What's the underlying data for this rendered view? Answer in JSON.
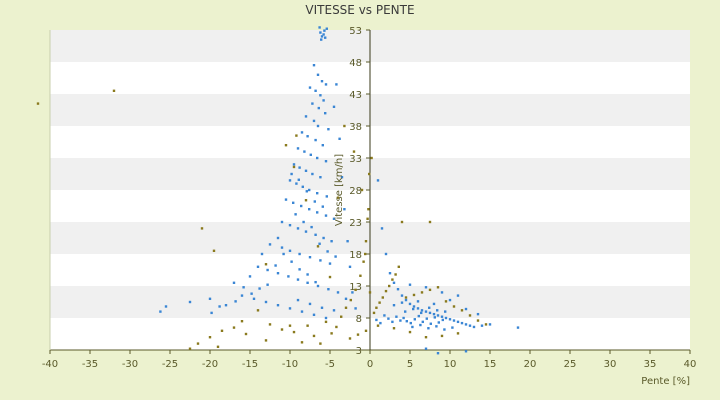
{
  "chart_data": {
    "type": "scatter",
    "title": "VITESSE vs PENTE",
    "xlabel": "Pente [%]",
    "ylabel": "Vitesse [km/h]",
    "xlim": [
      -40,
      40
    ],
    "ylim": [
      3,
      53
    ],
    "x_ticks": [
      "-40",
      "-35",
      "-30",
      "-25",
      "-20",
      "-15",
      "-10",
      "-5",
      "0",
      "5",
      "10",
      "15",
      "20",
      "25",
      "30",
      "35",
      "40"
    ],
    "y_ticks": [
      "3",
      "8",
      "13",
      "18",
      "23",
      "28",
      "33",
      "38",
      "43",
      "48",
      "53"
    ],
    "grid": "horizontal bands",
    "legend": "none",
    "colors": {
      "background": "#ecf2cf",
      "plot_band_light": "#ffffff",
      "plot_band_dark": "#f0f0f0",
      "series_primary": "#3a86d4",
      "series_secondary": "#8a7a1e",
      "axis": "#5a5a2a"
    },
    "series": [
      {
        "marker_color": "#3a86d4",
        "points": [
          [
            -6.2,
            52.6
          ],
          [
            -6.0,
            52.0
          ],
          [
            -5.8,
            52.3
          ],
          [
            -5.6,
            51.8
          ],
          [
            -6.1,
            51.5
          ],
          [
            -5.7,
            52.9
          ],
          [
            -5.4,
            53.2
          ],
          [
            -6.3,
            53.4
          ],
          [
            -7.0,
            47.5
          ],
          [
            -6.5,
            46.0
          ],
          [
            -6.0,
            45.0
          ],
          [
            -5.5,
            44.5
          ],
          [
            -7.5,
            44.0
          ],
          [
            -6.8,
            43.5
          ],
          [
            -6.2,
            42.8
          ],
          [
            -5.8,
            42.0
          ],
          [
            -7.2,
            41.5
          ],
          [
            -6.4,
            40.8
          ],
          [
            -5.6,
            40.0
          ],
          [
            -8.0,
            39.5
          ],
          [
            -7.0,
            38.8
          ],
          [
            -6.5,
            38.0
          ],
          [
            -5.2,
            37.5
          ],
          [
            -8.5,
            37.0
          ],
          [
            -7.8,
            36.4
          ],
          [
            -6.8,
            35.8
          ],
          [
            -5.9,
            35.0
          ],
          [
            -9.0,
            34.5
          ],
          [
            -8.2,
            34.0
          ],
          [
            -7.4,
            33.5
          ],
          [
            -6.6,
            33.0
          ],
          [
            -5.5,
            32.5
          ],
          [
            -9.5,
            32.0
          ],
          [
            -8.8,
            31.5
          ],
          [
            -8.0,
            31.0
          ],
          [
            -7.2,
            30.5
          ],
          [
            -6.2,
            30.0
          ],
          [
            -10.0,
            29.5
          ],
          [
            -9.2,
            29.0
          ],
          [
            -8.4,
            28.5
          ],
          [
            -7.6,
            28.0
          ],
          [
            -6.6,
            27.5
          ],
          [
            -5.4,
            27.0
          ],
          [
            -10.5,
            26.5
          ],
          [
            -9.6,
            26.0
          ],
          [
            -8.6,
            25.5
          ],
          [
            -7.6,
            25.0
          ],
          [
            -6.6,
            24.5
          ],
          [
            -5.5,
            24.0
          ],
          [
            -4.5,
            23.5
          ],
          [
            -11.0,
            23.0
          ],
          [
            -10.0,
            22.5
          ],
          [
            -9.0,
            22.0
          ],
          [
            -8.0,
            21.5
          ],
          [
            -6.8,
            21.0
          ],
          [
            -5.8,
            20.5
          ],
          [
            -4.8,
            20.0
          ],
          [
            -12.5,
            19.5
          ],
          [
            -11.0,
            19.0
          ],
          [
            -10.0,
            18.5
          ],
          [
            -8.8,
            18.0
          ],
          [
            -7.5,
            17.5
          ],
          [
            -6.2,
            17.0
          ],
          [
            -5.0,
            16.5
          ],
          [
            -14.0,
            16.0
          ],
          [
            -12.8,
            15.5
          ],
          [
            -11.5,
            15.0
          ],
          [
            -10.2,
            14.5
          ],
          [
            -9.0,
            14.0
          ],
          [
            -7.8,
            13.5
          ],
          [
            -6.5,
            13.0
          ],
          [
            -5.2,
            12.5
          ],
          [
            -4.0,
            12.0
          ],
          [
            -16.0,
            11.5
          ],
          [
            -14.5,
            11.0
          ],
          [
            -13.0,
            10.5
          ],
          [
            -11.5,
            10.0
          ],
          [
            -10.0,
            9.5
          ],
          [
            -8.5,
            9.0
          ],
          [
            -7.0,
            8.5
          ],
          [
            -5.5,
            8.0
          ],
          [
            -18.0,
            10.0
          ],
          [
            -20.0,
            11.0
          ],
          [
            -22.5,
            10.5
          ],
          [
            -25.5,
            9.8
          ],
          [
            -26.2,
            9.0
          ],
          [
            -17.0,
            13.5
          ],
          [
            -15.0,
            14.5
          ],
          [
            -13.5,
            18.0
          ],
          [
            -11.5,
            20.5
          ],
          [
            -4.2,
            44.5
          ],
          [
            -4.5,
            41.0
          ],
          [
            -3.8,
            36.0
          ],
          [
            -3.5,
            30.0
          ],
          [
            -3.2,
            25.0
          ],
          [
            -2.8,
            20.0
          ],
          [
            -2.5,
            16.0
          ],
          [
            -2.2,
            12.0
          ],
          [
            -1.8,
            9.5
          ],
          [
            1.0,
            29.5
          ],
          [
            1.5,
            22.0
          ],
          [
            2.0,
            18.0
          ],
          [
            2.5,
            15.0
          ],
          [
            3.0,
            13.5
          ],
          [
            3.5,
            12.5
          ],
          [
            4.0,
            11.5
          ],
          [
            4.5,
            10.8
          ],
          [
            5.0,
            10.2
          ],
          [
            5.5,
            9.8
          ],
          [
            6.0,
            9.5
          ],
          [
            6.5,
            9.2
          ],
          [
            7.0,
            9.0
          ],
          [
            7.5,
            8.8
          ],
          [
            8.0,
            8.6
          ],
          [
            8.5,
            8.4
          ],
          [
            9.0,
            8.2
          ],
          [
            9.5,
            8.0
          ],
          [
            10.0,
            7.8
          ],
          [
            10.5,
            7.6
          ],
          [
            11.0,
            7.4
          ],
          [
            11.5,
            7.2
          ],
          [
            12.0,
            7.0
          ],
          [
            12.5,
            6.8
          ],
          [
            13.0,
            6.6
          ],
          [
            14.0,
            6.8
          ],
          [
            15.0,
            7.0
          ],
          [
            18.5,
            6.5
          ],
          [
            4.2,
            8.0
          ],
          [
            4.6,
            7.5
          ],
          [
            5.1,
            7.2
          ],
          [
            5.6,
            7.8
          ],
          [
            6.1,
            8.3
          ],
          [
            6.6,
            7.4
          ],
          [
            7.1,
            7.9
          ],
          [
            7.6,
            7.1
          ],
          [
            8.1,
            8.1
          ],
          [
            8.6,
            7.3
          ],
          [
            9.1,
            7.7
          ],
          [
            3.8,
            7.6
          ],
          [
            3.3,
            8.2
          ],
          [
            2.8,
            7.4
          ],
          [
            2.3,
            7.9
          ],
          [
            1.8,
            8.4
          ],
          [
            1.3,
            7.2
          ],
          [
            0.8,
            7.7
          ],
          [
            5.3,
            6.6
          ],
          [
            6.3,
            6.9
          ],
          [
            7.3,
            6.4
          ],
          [
            8.3,
            6.7
          ],
          [
            9.3,
            6.2
          ],
          [
            10.3,
            6.5
          ],
          [
            4.4,
            9.0
          ],
          [
            5.4,
            9.4
          ],
          [
            6.4,
            8.8
          ],
          [
            7.4,
            9.6
          ],
          [
            8.4,
            9.2
          ],
          [
            9.4,
            9.0
          ],
          [
            3.0,
            10.0
          ],
          [
            4.0,
            10.4
          ],
          [
            6.0,
            10.6
          ],
          [
            8.0,
            10.2
          ],
          [
            10.0,
            10.8
          ],
          [
            12.0,
            9.4
          ],
          [
            9.0,
            12.0
          ],
          [
            7.0,
            12.8
          ],
          [
            5.0,
            13.2
          ],
          [
            11.0,
            11.5
          ],
          [
            13.5,
            8.6
          ],
          [
            -9.8,
            30.5
          ],
          [
            -8.9,
            29.6
          ],
          [
            -7.9,
            27.8
          ],
          [
            -6.9,
            26.2
          ],
          [
            -5.9,
            25.4
          ],
          [
            -9.3,
            24.2
          ],
          [
            -8.3,
            23.0
          ],
          [
            -7.3,
            22.2
          ],
          [
            -6.3,
            19.6
          ],
          [
            -5.3,
            18.4
          ],
          [
            -4.3,
            17.6
          ],
          [
            -10.8,
            18.0
          ],
          [
            -9.8,
            16.8
          ],
          [
            -8.8,
            15.6
          ],
          [
            -7.8,
            14.8
          ],
          [
            -6.8,
            13.6
          ],
          [
            -9.0,
            10.8
          ],
          [
            -7.5,
            10.2
          ],
          [
            -6.0,
            9.6
          ],
          [
            -4.5,
            9.2
          ],
          [
            -3.0,
            11.0
          ],
          [
            -11.8,
            16.2
          ],
          [
            -12.8,
            13.2
          ],
          [
            -13.8,
            12.6
          ],
          [
            -14.8,
            11.8
          ],
          [
            -15.8,
            12.8
          ],
          [
            -16.8,
            10.6
          ],
          [
            -18.8,
            9.8
          ],
          [
            -19.8,
            8.8
          ],
          [
            8.5,
            2.5
          ],
          [
            7.0,
            3.2
          ],
          [
            12.0,
            2.8
          ]
        ]
      },
      {
        "marker_color": "#8a7a1e",
        "points": [
          [
            -41.5,
            41.5
          ],
          [
            -32.0,
            43.5
          ],
          [
            -21.0,
            22.0
          ],
          [
            -19.5,
            18.5
          ],
          [
            -18.5,
            6.0
          ],
          [
            -19.0,
            3.5
          ],
          [
            -20.0,
            5.0
          ],
          [
            -21.5,
            4.0
          ],
          [
            -22.5,
            3.2
          ],
          [
            -17.0,
            6.5
          ],
          [
            -16.0,
            7.5
          ],
          [
            -15.5,
            5.5
          ],
          [
            -13.0,
            4.5
          ],
          [
            -12.5,
            7.0
          ],
          [
            -11.0,
            6.2
          ],
          [
            -9.5,
            5.8
          ],
          [
            -8.5,
            4.2
          ],
          [
            -7.8,
            6.8
          ],
          [
            -7.0,
            5.2
          ],
          [
            -6.2,
            4.0
          ],
          [
            -5.5,
            7.4
          ],
          [
            -4.8,
            5.6
          ],
          [
            -4.2,
            6.6
          ],
          [
            -3.6,
            8.2
          ],
          [
            -3.0,
            9.6
          ],
          [
            -2.4,
            10.8
          ],
          [
            -1.8,
            12.4
          ],
          [
            -1.2,
            14.6
          ],
          [
            -0.8,
            16.8
          ],
          [
            -0.5,
            20.0
          ],
          [
            -0.3,
            23.5
          ],
          [
            -0.2,
            25.0
          ],
          [
            -0.1,
            30.5
          ],
          [
            0.2,
            33.0
          ],
          [
            0.5,
            8.8
          ],
          [
            0.8,
            9.6
          ],
          [
            1.2,
            10.4
          ],
          [
            1.6,
            11.2
          ],
          [
            2.0,
            12.2
          ],
          [
            2.4,
            13.0
          ],
          [
            2.8,
            14.0
          ],
          [
            3.2,
            14.8
          ],
          [
            3.6,
            16.0
          ],
          [
            4.0,
            23.0
          ],
          [
            7.5,
            23.0
          ],
          [
            4.5,
            11.2
          ],
          [
            5.5,
            11.6
          ],
          [
            6.5,
            12.0
          ],
          [
            7.5,
            12.4
          ],
          [
            8.5,
            12.8
          ],
          [
            9.5,
            10.6
          ],
          [
            10.5,
            9.8
          ],
          [
            11.5,
            9.2
          ],
          [
            12.5,
            8.4
          ],
          [
            13.5,
            7.6
          ],
          [
            14.5,
            7.0
          ],
          [
            11.0,
            5.6
          ],
          [
            9.0,
            5.2
          ],
          [
            7.0,
            5.0
          ],
          [
            5.0,
            5.8
          ],
          [
            3.0,
            6.4
          ],
          [
            1.0,
            6.8
          ],
          [
            -0.5,
            6.0
          ],
          [
            -1.5,
            5.4
          ],
          [
            -2.5,
            4.8
          ],
          [
            -10.0,
            6.8
          ],
          [
            -14.0,
            9.2
          ],
          [
            -13.0,
            16.4
          ],
          [
            -10.5,
            35.0
          ],
          [
            -9.2,
            36.5
          ],
          [
            -3.2,
            38.0
          ],
          [
            -2.0,
            34.0
          ],
          [
            -1.0,
            28.0
          ],
          [
            -0.6,
            18.0
          ],
          [
            0.0,
            12.0
          ],
          [
            -5.0,
            14.4
          ],
          [
            -6.5,
            19.2
          ],
          [
            -8.0,
            26.4
          ],
          [
            -9.5,
            31.6
          ],
          [
            -4.0,
            26.8
          ]
        ]
      }
    ]
  }
}
